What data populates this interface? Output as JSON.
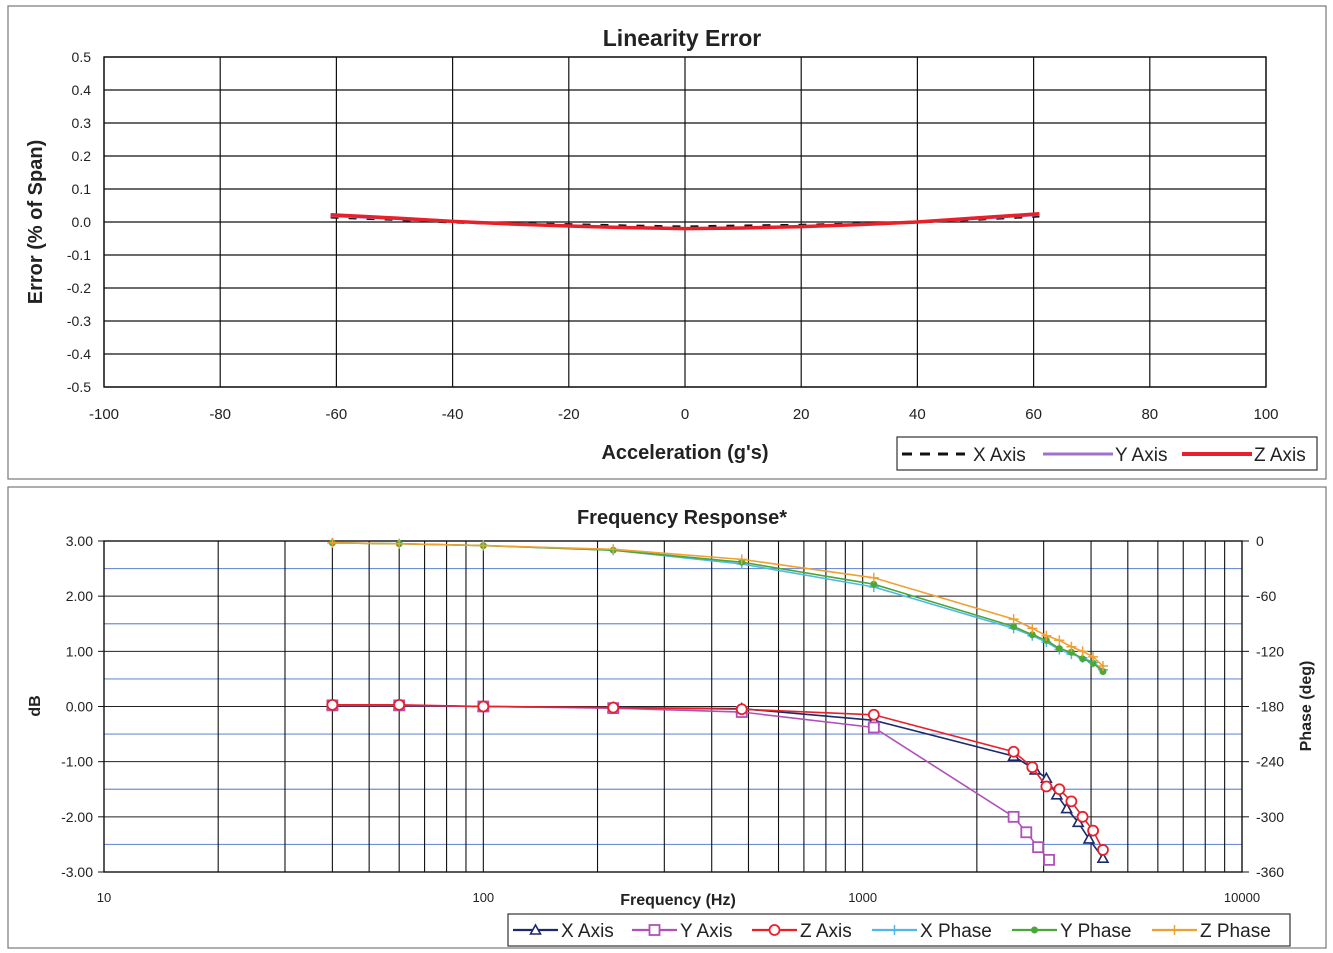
{
  "chart_data": [
    {
      "type": "line",
      "title": "Linearity Error",
      "xlabel": "Acceleration (g's)",
      "ylabel": "Error (% of Span)",
      "xlim": [
        -100,
        100
      ],
      "ylim": [
        -0.5,
        0.5
      ],
      "xticks": [
        "-100",
        "-80",
        "-60",
        "-40",
        "-20",
        "0",
        "20",
        "40",
        "60",
        "80",
        "100"
      ],
      "yticks": [
        "0.5",
        "0.4",
        "0.3",
        "0.2",
        "0.1",
        "0.0",
        "-0.1",
        "-0.2",
        "-0.3",
        "-0.4",
        "-0.5"
      ],
      "grid": true,
      "legend_position": "bottom-right",
      "series": [
        {
          "name": "X Axis",
          "color": "#111111",
          "style": "dashed",
          "x": [
            -61,
            -50,
            -40,
            -30,
            -20,
            -10,
            0,
            10,
            20,
            30,
            40,
            50,
            61
          ],
          "y": [
            0.015,
            0.008,
            0.0,
            -0.005,
            -0.008,
            -0.012,
            -0.015,
            -0.012,
            -0.01,
            -0.006,
            0.0,
            0.008,
            0.018
          ]
        },
        {
          "name": "Y Axis",
          "color": "#a070d0",
          "style": "solid",
          "x": [
            -61,
            -50,
            -40,
            -30,
            -20,
            -10,
            0,
            10,
            20,
            30,
            40,
            50,
            61
          ],
          "y": [
            0.018,
            0.01,
            0.002,
            -0.006,
            -0.012,
            -0.017,
            -0.02,
            -0.018,
            -0.014,
            -0.008,
            0.0,
            0.01,
            0.022
          ]
        },
        {
          "name": "Z Axis",
          "color": "#e8202a",
          "style": "solid",
          "x": [
            -61,
            -50,
            -40,
            -30,
            -20,
            -10,
            0,
            10,
            20,
            30,
            40,
            50,
            61
          ],
          "y": [
            0.022,
            0.012,
            0.002,
            -0.006,
            -0.012,
            -0.017,
            -0.02,
            -0.018,
            -0.014,
            -0.008,
            0.0,
            0.012,
            0.025
          ]
        }
      ]
    },
    {
      "type": "line",
      "title": "Frequency Response*",
      "xlabel": "Frequency (Hz)",
      "ylabel": "dB",
      "y2label": "Phase (deg)",
      "xscale": "log",
      "xlim": [
        10,
        10000
      ],
      "ylim": [
        -3,
        3
      ],
      "y2lim": [
        -360,
        0
      ],
      "xticks": [
        "10",
        "100",
        "1000",
        "10000"
      ],
      "yticks": [
        "3.00",
        "2.00",
        "1.00",
        "0.00",
        "-1.00",
        "-2.00",
        "-3.00"
      ],
      "y2ticks": [
        "0",
        "-60",
        "-120",
        "-180",
        "-240",
        "-300",
        "-360"
      ],
      "grid": true,
      "legend_position": "bottom-right",
      "series": [
        {
          "name": "X Axis",
          "axis": "left",
          "color": "#1a2a6c",
          "marker": "triangle",
          "x": [
            40,
            60,
            100,
            220,
            480,
            1070,
            2500,
            2850,
            3050,
            3250,
            3450,
            3700,
            3950,
            4300
          ],
          "y": [
            0.03,
            0.02,
            0.0,
            -0.02,
            -0.04,
            -0.25,
            -0.9,
            -1.15,
            -1.3,
            -1.6,
            -1.85,
            -2.1,
            -2.4,
            -2.75
          ]
        },
        {
          "name": "Y Axis",
          "axis": "left",
          "color": "#b050b8",
          "marker": "square",
          "x": [
            40,
            60,
            100,
            220,
            480,
            1070,
            2500,
            2700,
            2900,
            3100
          ],
          "y": [
            0.02,
            0.02,
            0.0,
            -0.03,
            -0.1,
            -0.38,
            -2.0,
            -2.28,
            -2.55,
            -2.78
          ]
        },
        {
          "name": "Z Axis",
          "axis": "left",
          "color": "#e8202a",
          "marker": "circle",
          "x": [
            40,
            60,
            100,
            220,
            480,
            1070,
            2500,
            2800,
            3050,
            3300,
            3550,
            3800,
            4050,
            4300
          ],
          "y": [
            0.03,
            0.03,
            0.0,
            -0.02,
            -0.05,
            -0.15,
            -0.82,
            -1.1,
            -1.45,
            -1.5,
            -1.72,
            -2.0,
            -2.25,
            -2.6
          ]
        },
        {
          "name": "X Phase",
          "axis": "right",
          "color": "#50b8e8",
          "marker": "plus",
          "x": [
            40,
            60,
            100,
            220,
            480,
            1070,
            2500,
            2800,
            3050,
            3300,
            3550,
            3800,
            4050,
            4300
          ],
          "y": [
            -2,
            -3,
            -5,
            -10,
            -25,
            -50,
            -95,
            -103,
            -110,
            -118,
            -123,
            -127,
            -132,
            -140
          ]
        },
        {
          "name": "Y Phase",
          "axis": "right",
          "color": "#4aa838",
          "marker": "dot",
          "x": [
            40,
            60,
            100,
            220,
            480,
            1070,
            2500,
            2800,
            3050,
            3300,
            3550,
            3800,
            4050,
            4300
          ],
          "y": [
            -2,
            -3,
            -5,
            -10,
            -23,
            -47,
            -93,
            -102,
            -108,
            -117,
            -121,
            -128,
            -133,
            -142
          ]
        },
        {
          "name": "Z Phase",
          "axis": "right",
          "color": "#f0a030",
          "marker": "plus",
          "x": [
            40,
            60,
            100,
            220,
            480,
            1070,
            2500,
            2800,
            3050,
            3300,
            3550,
            3800,
            4050,
            4300
          ],
          "y": [
            -2,
            -3,
            -5,
            -9,
            -20,
            -40,
            -85,
            -95,
            -103,
            -108,
            -115,
            -120,
            -126,
            -136
          ]
        }
      ]
    }
  ]
}
